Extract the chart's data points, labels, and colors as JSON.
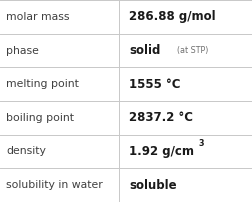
{
  "rows": [
    {
      "label": "molar mass",
      "value": "286.88 g/mol",
      "superscript": null,
      "extra": null
    },
    {
      "label": "phase",
      "value": "solid",
      "superscript": null,
      "extra": "(at STP)"
    },
    {
      "label": "melting point",
      "value": "1555 °C",
      "superscript": null,
      "extra": null
    },
    {
      "label": "boiling point",
      "value": "2837.2 °C",
      "superscript": null,
      "extra": null
    },
    {
      "label": "density",
      "value": "1.92 g/cm",
      "superscript": "3",
      "extra": null
    },
    {
      "label": "solubility in water",
      "value": "soluble",
      "superscript": null,
      "extra": null
    }
  ],
  "col_split": 0.472,
  "bg_color": "#ffffff",
  "label_color": "#404040",
  "value_color": "#1a1a1a",
  "extra_color": "#707070",
  "grid_color": "#c8c8c8",
  "label_fontsize": 7.8,
  "value_fontsize": 8.5,
  "extra_fontsize": 5.8,
  "sup_fontsize": 5.8
}
